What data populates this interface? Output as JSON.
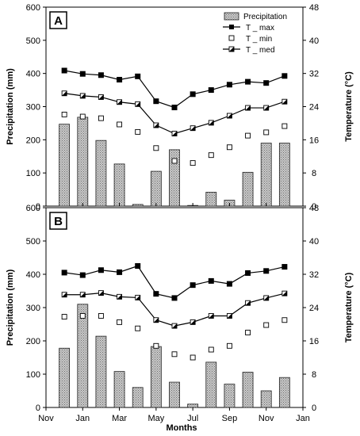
{
  "chart_data": [
    {
      "type": "bar+line",
      "panel_label": "A",
      "xlabel": "",
      "ylabel_left": "Precipitation (mm)",
      "ylabel_right": "Temperature (°C)",
      "ylim_left": [
        0,
        600
      ],
      "ylim_right": [
        0,
        48
      ],
      "yticks_left": [
        0,
        100,
        200,
        300,
        400,
        500,
        600
      ],
      "yticks_right": [
        0,
        8,
        16,
        24,
        32,
        40,
        48
      ],
      "x_months": [
        1,
        2,
        3,
        4,
        5,
        6,
        7,
        8,
        9,
        10,
        11,
        12,
        13
      ],
      "precipitation": [
        247,
        268,
        198,
        127,
        5,
        105,
        170,
        2,
        42,
        18,
        102,
        190,
        190
      ],
      "t_max": [
        32.7,
        31.9,
        31.6,
        30.5,
        31.3,
        25.3,
        23.8,
        27.0,
        28.0,
        29.3,
        30.0,
        29.7,
        31.4
      ],
      "t_min": [
        22.1,
        21.6,
        21.2,
        19.7,
        17.9,
        14.0,
        10.9,
        10.4,
        12.3,
        14.2,
        17.0,
        17.8,
        19.3
      ],
      "t_med": [
        27.2,
        26.6,
        26.3,
        25.1,
        24.6,
        19.5,
        17.5,
        18.8,
        20.1,
        21.8,
        23.7,
        23.7,
        25.2
      ],
      "legend": {
        "placement": "top-right",
        "entries": [
          "Precipitation",
          "T _ max",
          "T _ min",
          "T _ med"
        ]
      }
    },
    {
      "type": "bar+line",
      "panel_label": "B",
      "xlabel": "Months",
      "ylabel_left": "Precipitation (mm)",
      "ylabel_right": "Temperature (°C)",
      "ylim_left": [
        0,
        600
      ],
      "ylim_right": [
        0,
        48
      ],
      "yticks_left": [
        0,
        100,
        200,
        300,
        400,
        500,
        600
      ],
      "yticks_right": [
        0,
        8,
        16,
        24,
        32,
        40,
        48
      ],
      "x_months": [
        1,
        2,
        3,
        4,
        5,
        6,
        7,
        8,
        9,
        10,
        11,
        12,
        13
      ],
      "xticks": [
        {
          "month": 0,
          "label": "Nov"
        },
        {
          "month": 2,
          "label": "Jan"
        },
        {
          "month": 4,
          "label": "Mar"
        },
        {
          "month": 6,
          "label": "May"
        },
        {
          "month": 8,
          "label": "Jul"
        },
        {
          "month": 10,
          "label": "Sep"
        },
        {
          "month": 12,
          "label": "Nov"
        },
        {
          "month": 14,
          "label": "Jan"
        }
      ],
      "precipitation": [
        178,
        310,
        214,
        108,
        60,
        183,
        76,
        10,
        136,
        70,
        106,
        50,
        90
      ],
      "t_max": [
        32.4,
        31.8,
        33.0,
        32.5,
        34.0,
        27.3,
        26.3,
        29.4,
        30.4,
        29.7,
        32.3,
        32.8,
        33.8
      ],
      "t_min": [
        21.8,
        22.0,
        22.0,
        20.5,
        19.0,
        14.8,
        12.8,
        12.0,
        13.9,
        14.8,
        18.0,
        19.8,
        21.0
      ],
      "t_med": [
        27.1,
        27.1,
        27.5,
        26.6,
        26.4,
        21.0,
        19.6,
        20.5,
        22.0,
        22.0,
        25.1,
        26.3,
        27.4
      ]
    }
  ]
}
